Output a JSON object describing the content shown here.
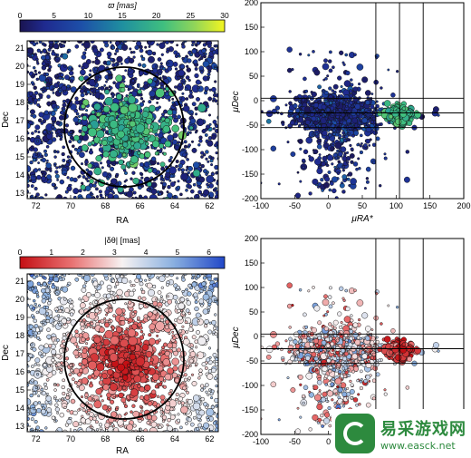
{
  "panels": {
    "top_left": {
      "colorbar_label": "ϖ [mas]",
      "colorbar_ticks": [
        "0",
        "5",
        "10",
        "15",
        "20",
        "25",
        "30"
      ],
      "xlabel": "RA",
      "ylabel": "Dec",
      "xticks": [
        "72",
        "70",
        "68",
        "66",
        "64",
        "62"
      ],
      "yticks": [
        "13",
        "14",
        "15",
        "16",
        "17",
        "18",
        "19",
        "20",
        "21"
      ]
    },
    "top_right": {
      "xlabel": "μRA*",
      "ylabel": "μDec",
      "xticks": [
        "-100",
        "-50",
        "0",
        "50",
        "100",
        "150",
        "200"
      ],
      "yticks": [
        "-200",
        "-150",
        "-100",
        "-50",
        "0",
        "50",
        "100",
        "150",
        "200"
      ]
    },
    "bottom_left": {
      "colorbar_label": "|δθ| [mas]",
      "colorbar_ticks": [
        "0",
        "1",
        "2",
        "3",
        "4",
        "5",
        "6"
      ],
      "xlabel": "RA",
      "ylabel": "Dec",
      "xticks": [
        "72",
        "70",
        "68",
        "66",
        "64",
        "62"
      ],
      "yticks": [
        "13",
        "14",
        "15",
        "16",
        "17",
        "18",
        "19",
        "20",
        "21"
      ]
    },
    "bottom_right": {
      "xlabel": "μRA*",
      "ylabel": "μDec",
      "xticks": [
        "-100",
        "-50",
        "0",
        "50"
      ],
      "yticks": [
        "-200",
        "-150",
        "-100",
        "-50",
        "0",
        "50",
        "100",
        "150",
        "200"
      ]
    }
  },
  "watermark": {
    "cn": "易采游戏网",
    "url": "www.easck.net"
  },
  "chart_data": [
    {
      "type": "scatter",
      "xlabel": "RA",
      "ylabel": "Dec",
      "xlim": [
        72.5,
        61.5
      ],
      "ylim": [
        12.7,
        21.4
      ],
      "color_by": "ϖ [mas]",
      "color_range": [
        0,
        30
      ],
      "colormap": "viridis",
      "circle": {
        "center": [
          66.75,
          16.4
        ],
        "radius_deg": 3.4
      },
      "note": "dense cluster of high-parallax (ϖ≈20–22 mas) stars near centre; field stars ϖ≈0–8 mas spread uniformly"
    },
    {
      "type": "scatter",
      "xlabel": "μRA*",
      "ylabel": "μDec",
      "xlim": [
        -100,
        200
      ],
      "ylim": [
        -200,
        200
      ],
      "color_by": "ϖ [mas]",
      "colormap": "viridis",
      "reference_lines": {
        "vertical": [
          70,
          105,
          140
        ],
        "horizontal": [
          5,
          -25,
          -55
        ]
      },
      "cluster_centroid": [
        105,
        -28
      ],
      "field_centroid": [
        10,
        -30
      ]
    },
    {
      "type": "scatter",
      "xlabel": "RA",
      "ylabel": "Dec",
      "xlim": [
        72.5,
        61.5
      ],
      "ylim": [
        12.7,
        21.4
      ],
      "color_by": "|δθ| [mas]",
      "color_range": [
        0,
        6.5
      ],
      "colormap": "red-white-blue",
      "circle": {
        "center": [
          66.75,
          16.4
        ],
        "radius_deg": 3.4
      }
    },
    {
      "type": "scatter",
      "xlabel": "μRA*",
      "ylabel": "μDec",
      "xlim": [
        -100,
        200
      ],
      "ylim": [
        -200,
        200
      ],
      "color_by": "|δθ| [mas]",
      "colormap": "red-white-blue",
      "reference_lines": {
        "vertical": [
          70,
          105,
          140
        ],
        "horizontal": [
          5,
          -25,
          -55
        ]
      }
    }
  ]
}
